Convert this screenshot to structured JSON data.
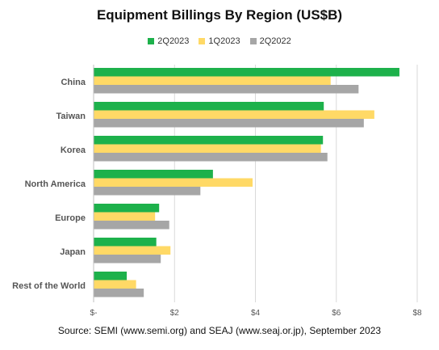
{
  "chart_data": {
    "type": "bar",
    "orientation": "horizontal",
    "title": "Equipment Billings By Region (US$B)",
    "categories": [
      "China",
      "Taiwan",
      "Korea",
      "North America",
      "Europe",
      "Japan",
      "Rest of the World"
    ],
    "series": [
      {
        "name": "2Q2023",
        "color": "#1db14b",
        "values": [
          7.56,
          5.69,
          5.67,
          2.95,
          1.62,
          1.55,
          0.82
        ]
      },
      {
        "name": "1Q2023",
        "color": "#ffd966",
        "values": [
          5.86,
          6.94,
          5.62,
          3.93,
          1.52,
          1.9,
          1.05
        ]
      },
      {
        "name": "2Q2022",
        "color": "#a6a6a6",
        "values": [
          6.55,
          6.68,
          5.78,
          2.64,
          1.87,
          1.66,
          1.24
        ]
      }
    ],
    "xlim": [
      0,
      8
    ],
    "xticks": [
      0,
      2,
      4,
      6,
      8
    ],
    "xtick_labels": [
      "$-",
      "$2",
      "$4",
      "$6",
      "$8"
    ],
    "grid": "vertical",
    "legend_position": "top",
    "source": "Source: SEMI (www.semi.org) and SEAJ (www.seaj.or.jp), September 2023"
  }
}
